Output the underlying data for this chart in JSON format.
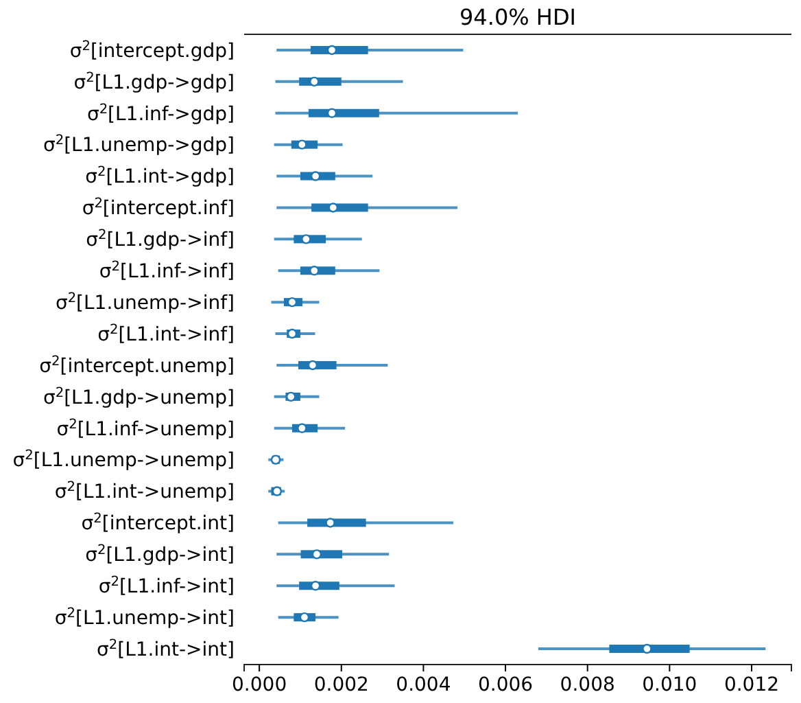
{
  "chart_data": {
    "type": "box",
    "orientation": "horizontal",
    "title": "94.0% HDI",
    "color": "#1f77b4",
    "categories": [
      "σ$^{2}$[intercept.gdp]",
      "σ$^{2}$[L1.gdp->gdp]",
      "σ$^{2}$[L1.inf->gdp]",
      "σ$^{2}$[L1.unemp->gdp]",
      "σ$^{2}$[L1.int->gdp]",
      "σ$^{2}$[intercept.inf]",
      "σ$^{2}$[L1.gdp->inf]",
      "σ$^{2}$[L1.inf->inf]",
      "σ$^{2}$[L1.unemp->inf]",
      "σ$^{2}$[L1.int->inf]",
      "σ$^{2}$[intercept.unemp]",
      "σ$^{2}$[L1.gdp->unemp]",
      "σ$^{2}$[L1.inf->unemp]",
      "σ$^{2}$[L1.unemp->unemp]",
      "σ$^{2}$[L1.int->unemp]",
      "σ$^{2}$[intercept.int]",
      "σ$^{2}$[L1.gdp->int]",
      "σ$^{2}$[L1.inf->int]",
      "σ$^{2}$[L1.unemp->int]",
      "σ$^{2}$[L1.int->int]"
    ],
    "boxes": [
      {
        "low": 0.00042,
        "q1": 0.00125,
        "median": 0.00177,
        "q3": 0.00265,
        "high": 0.00497
      },
      {
        "low": 0.00039,
        "q1": 0.00097,
        "median": 0.00134,
        "q3": 0.002,
        "high": 0.0035
      },
      {
        "low": 0.00039,
        "q1": 0.0012,
        "median": 0.00177,
        "q3": 0.00292,
        "high": 0.0063
      },
      {
        "low": 0.00036,
        "q1": 0.00078,
        "median": 0.00104,
        "q3": 0.00142,
        "high": 0.00203
      },
      {
        "low": 0.00042,
        "q1": 0.001,
        "median": 0.00137,
        "q3": 0.00185,
        "high": 0.00276
      },
      {
        "low": 0.00042,
        "q1": 0.00127,
        "median": 0.0018,
        "q3": 0.00265,
        "high": 0.00483
      },
      {
        "low": 0.00036,
        "q1": 0.00084,
        "median": 0.00114,
        "q3": 0.00162,
        "high": 0.0025
      },
      {
        "low": 0.00046,
        "q1": 0.001,
        "median": 0.00134,
        "q3": 0.00185,
        "high": 0.00293
      },
      {
        "low": 0.00029,
        "q1": 0.0006,
        "median": 0.0008,
        "q3": 0.00105,
        "high": 0.00146
      },
      {
        "low": 0.00039,
        "q1": 0.00067,
        "median": 0.0008,
        "q3": 0.001,
        "high": 0.00136
      },
      {
        "low": 0.00042,
        "q1": 0.00095,
        "median": 0.0013,
        "q3": 0.00188,
        "high": 0.00313
      },
      {
        "low": 0.00036,
        "q1": 0.00064,
        "median": 0.00077,
        "q3": 0.001,
        "high": 0.00146
      },
      {
        "low": 0.00036,
        "q1": 0.0008,
        "median": 0.00104,
        "q3": 0.00142,
        "high": 0.00209
      },
      {
        "low": 0.00022,
        "q1": 0.00031,
        "median": 0.0004,
        "q3": 0.0005,
        "high": 0.00059
      },
      {
        "low": 0.00022,
        "q1": 0.00029,
        "median": 0.00043,
        "q3": 0.00053,
        "high": 0.00062
      },
      {
        "low": 0.00046,
        "q1": 0.00117,
        "median": 0.00173,
        "q3": 0.0026,
        "high": 0.00473
      },
      {
        "low": 0.00042,
        "q1": 0.00101,
        "median": 0.0014,
        "q3": 0.00202,
        "high": 0.00316
      },
      {
        "low": 0.00042,
        "q1": 0.00097,
        "median": 0.00137,
        "q3": 0.00195,
        "high": 0.0033
      },
      {
        "low": 0.00046,
        "q1": 0.00084,
        "median": 0.0011,
        "q3": 0.00137,
        "high": 0.00193
      },
      {
        "low": 0.0068,
        "q1": 0.00853,
        "median": 0.00945,
        "q3": 0.01049,
        "high": 0.01234
      }
    ],
    "xlim": [
      -0.00037,
      0.01297
    ],
    "xticks": [
      {
        "value": 0,
        "label": "0.000"
      },
      {
        "value": 0.002,
        "label": "0.002"
      },
      {
        "value": 0.004,
        "label": "0.004"
      },
      {
        "value": 0.006,
        "label": "0.006"
      },
      {
        "value": 0.008,
        "label": "0.008"
      },
      {
        "value": 0.01,
        "label": "0.010"
      },
      {
        "value": 0.012,
        "label": "0.012"
      }
    ],
    "grid": false
  }
}
